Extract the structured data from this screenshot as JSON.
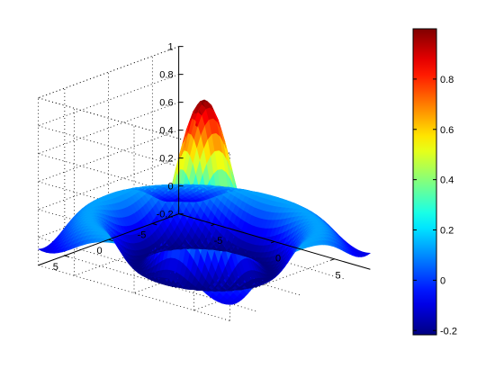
{
  "chart_data": {
    "type": "surface",
    "title": "",
    "xlabel": "",
    "ylabel": "",
    "zlabel": "",
    "function": "z = sin(r)/r, r = sqrt(x^2 + y^2)",
    "xlim": [
      -8,
      8
    ],
    "ylim": [
      -8,
      8
    ],
    "zlim": [
      -0.2,
      1
    ],
    "x_ticks": [
      -5,
      0,
      5
    ],
    "y_ticks": [
      -5,
      0,
      5
    ],
    "z_ticks": [
      -0.2,
      0,
      0.2,
      0.4,
      0.6,
      0.8,
      1
    ],
    "peak": {
      "x": 0,
      "y": 0,
      "z": 1
    },
    "first_trough_z": -0.22,
    "grid": true,
    "colormap": "jet",
    "shading": "interp",
    "colorbar": {
      "placement": "right",
      "range": [
        -0.217,
        1
      ],
      "ticks": [
        -0.2,
        0,
        0.2,
        0.4,
        0.6,
        0.8
      ]
    }
  }
}
